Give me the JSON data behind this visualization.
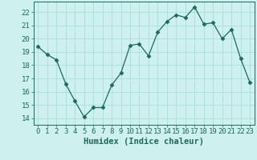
{
  "x": [
    0,
    1,
    2,
    3,
    4,
    5,
    6,
    7,
    8,
    9,
    10,
    11,
    12,
    13,
    14,
    15,
    16,
    17,
    18,
    19,
    20,
    21,
    22,
    23
  ],
  "y": [
    19.4,
    18.8,
    18.4,
    16.6,
    15.3,
    14.1,
    14.8,
    14.8,
    16.5,
    17.4,
    19.5,
    19.6,
    18.7,
    20.5,
    21.3,
    21.8,
    21.6,
    22.4,
    21.1,
    21.2,
    20.0,
    20.7,
    18.5,
    16.7
  ],
  "xlabel": "Humidex (Indice chaleur)",
  "ylim": [
    13.5,
    22.8
  ],
  "xlim": [
    -0.5,
    23.5
  ],
  "yticks": [
    14,
    15,
    16,
    17,
    18,
    19,
    20,
    21,
    22
  ],
  "xticks": [
    0,
    1,
    2,
    3,
    4,
    5,
    6,
    7,
    8,
    9,
    10,
    11,
    12,
    13,
    14,
    15,
    16,
    17,
    18,
    19,
    20,
    21,
    22,
    23
  ],
  "line_color": "#1a6b5a",
  "marker": "D",
  "marker_size": 2.5,
  "bg_color": "#cef0ee",
  "grid_color": "#aaddda",
  "tick_color": "#1a6b5a",
  "label_color": "#1a6b5a",
  "font_size": 6.5,
  "xlabel_fontsize": 7.5
}
